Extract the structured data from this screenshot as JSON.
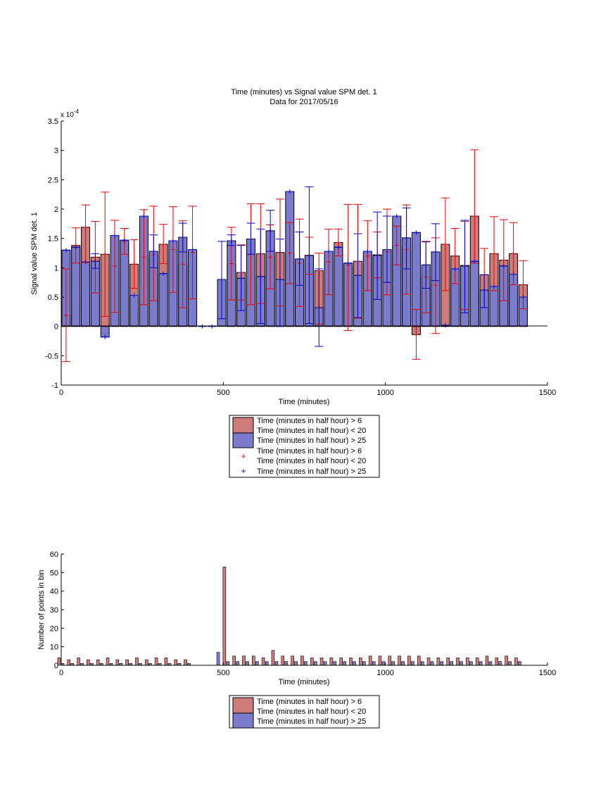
{
  "colors": {
    "red_bar": "#cd7b7b",
    "blue_bar": "#7b7bcd",
    "red_err": "#ee0000",
    "blue_err": "#0000cc",
    "axis": "#000000"
  },
  "chart_data": [
    {
      "type": "bar",
      "title": "Time (minutes) vs Signal value SPM det. 1",
      "subtitle": "Data for 2017/05/16",
      "xlabel": "Time (minutes)",
      "ylabel": "Signal value SPM det. 1",
      "exponent_label": "x 10",
      "exponent_power": "-4",
      "xlim": [
        0,
        1500
      ],
      "ylim": [
        -1,
        3.5
      ],
      "xticks": [
        "0",
        "500",
        "1000",
        "1500"
      ],
      "yticks": [
        "-1",
        "-0.5",
        "0",
        "0.5",
        "1",
        "1.5",
        "2",
        "2.5",
        "3",
        "3.5"
      ],
      "legend_placement": "below",
      "legend": [
        "Time (minutes in half hour) > 6",
        "Time (minutes in half hour) < 20",
        "Time (minutes in half hour) > 25",
        "Time (minutes in half hour) > 6",
        "Time (minutes in half hour) < 20",
        "Time (minutes in half hour) > 25"
      ],
      "x": [
        15,
        45,
        75,
        105,
        135,
        165,
        195,
        225,
        255,
        285,
        315,
        345,
        375,
        405,
        435,
        465,
        495,
        525,
        555,
        585,
        615,
        645,
        675,
        705,
        735,
        765,
        795,
        825,
        855,
        885,
        915,
        945,
        975,
        1005,
        1035,
        1065,
        1095,
        1125,
        1155,
        1185,
        1215,
        1245,
        1275,
        1305,
        1335,
        1365,
        1395,
        1425
      ],
      "series": [
        {
          "name": "Time (minutes in half hour) > 6 Time (minutes in half hour) < 20",
          "values": [
            0.19,
            1.38,
            1.69,
            1.18,
            1.23,
            1.03,
            1.45,
            1.06,
            1.18,
            1.22,
            1.4,
            1.31,
            1.06,
            1.26,
            null,
            null,
            null,
            1.07,
            0.92,
            1.23,
            1.24,
            1.18,
            1.26,
            1.25,
            1.08,
            1.21,
            0.95,
            1.1,
            1.43,
            1.04,
            1.11,
            1.2,
            1.22,
            1.27,
            1.38,
            1.31,
            -0.14,
            0.84,
            0.7,
            1.4,
            1.2,
            1.04,
            1.88,
            0.88,
            1.24,
            1.13,
            1.24,
            0.71
          ],
          "err_low": [
            -0.6,
            1.08,
            1.09,
            0.57,
            0.17,
            0.24,
            1.23,
            0.65,
            0.37,
            0.44,
            1.07,
            0.58,
            0.32,
            0.47,
            null,
            null,
            null,
            0.45,
            0.45,
            0.37,
            0.39,
            0.64,
            0.35,
            0.73,
            0.34,
            0.89,
            0.04,
            0.54,
            1.2,
            -0.07,
            0.14,
            0.61,
            0.83,
            0.54,
            1.05,
            0.55,
            -0.56,
            0.23,
            -0.12,
            0.61,
            0.73,
            0.29,
            1.08,
            0.32,
            0.61,
            0.44,
            0.71,
            0.3
          ],
          "err_high": [
            0.98,
            1.68,
            2.07,
            1.79,
            2.29,
            1.81,
            1.67,
            1.48,
            1.99,
            2.05,
            1.74,
            2.04,
            1.8,
            2.05,
            null,
            null,
            null,
            1.69,
            1.39,
            2.09,
            2.09,
            1.73,
            2.17,
            1.77,
            1.83,
            1.52,
            1.25,
            1.66,
            1.66,
            2.08,
            2.08,
            1.8,
            1.61,
            2.0,
            1.71,
            2.07,
            0.29,
            1.45,
            1.51,
            2.19,
            1.67,
            1.79,
            3.01,
            1.33,
            1.87,
            1.82,
            1.77,
            1.12
          ]
        },
        {
          "name": "Time (minutes in half hour) > 25",
          "values": [
            1.3,
            1.35,
            1.1,
            1.11,
            -0.18,
            1.55,
            1.47,
            0.53,
            1.88,
            1.28,
            0.9,
            1.46,
            1.52,
            1.31,
            0.0,
            0.0,
            0.8,
            1.46,
            0.82,
            1.49,
            0.85,
            1.63,
            0.8,
            2.3,
            1.15,
            1.21,
            0.32,
            1.28,
            1.35,
            1.08,
            0.87,
            1.28,
            1.21,
            1.31,
            1.88,
            1.51,
            1.6,
            1.05,
            1.27,
            0.02,
            0.98,
            1.03,
            1.11,
            0.62,
            0.68,
            1.03,
            0.89,
            0.5
          ],
          "err_low": [
            1.3,
            1.35,
            1.1,
            0.99,
            -0.18,
            1.55,
            1.47,
            0.53,
            1.88,
            1.0,
            0.9,
            1.46,
            1.27,
            1.31,
            0.0,
            0.0,
            0.13,
            1.38,
            0.27,
            1.23,
            0.05,
            1.28,
            0.0,
            2.3,
            0.7,
            0.05,
            -0.34,
            1.28,
            1.35,
            1.08,
            0.15,
            1.28,
            0.46,
            0.75,
            1.88,
            0.98,
            1.6,
            0.65,
            0.78,
            0.02,
            0.98,
            0.23,
            1.11,
            0.32,
            0.68,
            1.03,
            0.89,
            0.5
          ],
          "err_high": [
            1.3,
            1.35,
            1.1,
            1.24,
            -0.18,
            1.55,
            1.47,
            0.53,
            1.88,
            1.56,
            0.9,
            1.46,
            1.76,
            1.31,
            0.0,
            0.0,
            1.45,
            1.56,
            1.38,
            1.76,
            1.66,
            1.98,
            1.49,
            2.3,
            1.61,
            2.38,
            0.98,
            1.28,
            1.35,
            1.08,
            1.58,
            1.28,
            1.95,
            1.88,
            1.88,
            2.02,
            1.6,
            1.44,
            1.75,
            0.02,
            0.98,
            1.81,
            1.11,
            0.88,
            0.68,
            1.03,
            0.89,
            0.5
          ]
        }
      ]
    },
    {
      "type": "bar",
      "xlabel": "Time (minutes)",
      "ylabel": "Number of points in bin",
      "xlim": [
        0,
        1500
      ],
      "ylim": [
        0,
        60
      ],
      "xticks": [
        "0",
        "500",
        "1000",
        "1500"
      ],
      "yticks": [
        "0",
        "10",
        "20",
        "30",
        "40",
        "50",
        "60"
      ],
      "legend_placement": "below",
      "legend": [
        "Time (minutes in half hour) > 6",
        "Time (minutes in half hour) < 20",
        "Time (minutes in half hour) > 25"
      ],
      "x": [
        15,
        45,
        75,
        105,
        135,
        165,
        195,
        225,
        255,
        285,
        315,
        345,
        375,
        405,
        435,
        465,
        495,
        525,
        555,
        585,
        615,
        645,
        675,
        705,
        735,
        765,
        795,
        825,
        855,
        885,
        915,
        945,
        975,
        1005,
        1035,
        1065,
        1095,
        1125,
        1155,
        1185,
        1215,
        1245,
        1275,
        1305,
        1335,
        1365,
        1395,
        1425
      ],
      "series": [
        {
          "name": "Time (minutes in half hour) > 6 Time (minutes in half hour) < 20",
          "values": [
            4,
            3,
            4,
            3,
            3,
            4,
            3,
            3,
            4,
            3,
            4,
            4,
            3,
            3,
            0,
            0,
            0,
            53,
            5,
            5,
            5,
            4,
            8,
            5,
            5,
            5,
            4,
            4,
            4,
            4,
            4,
            4,
            5,
            5,
            5,
            5,
            5,
            5,
            4,
            4,
            4,
            4,
            4,
            4,
            5,
            4,
            5,
            4
          ]
        },
        {
          "name": "Time (minutes in half hour) > 25",
          "values": [
            1,
            1,
            1,
            1,
            1,
            1,
            1,
            1,
            1,
            1,
            1,
            1,
            1,
            1,
            0,
            0,
            7,
            2,
            2,
            2,
            2,
            2,
            2,
            2,
            2,
            2,
            2,
            2,
            2,
            2,
            2,
            2,
            2,
            2,
            2,
            2,
            2,
            2,
            2,
            2,
            2,
            2,
            2,
            2,
            2,
            2,
            2,
            2
          ]
        }
      ]
    }
  ]
}
